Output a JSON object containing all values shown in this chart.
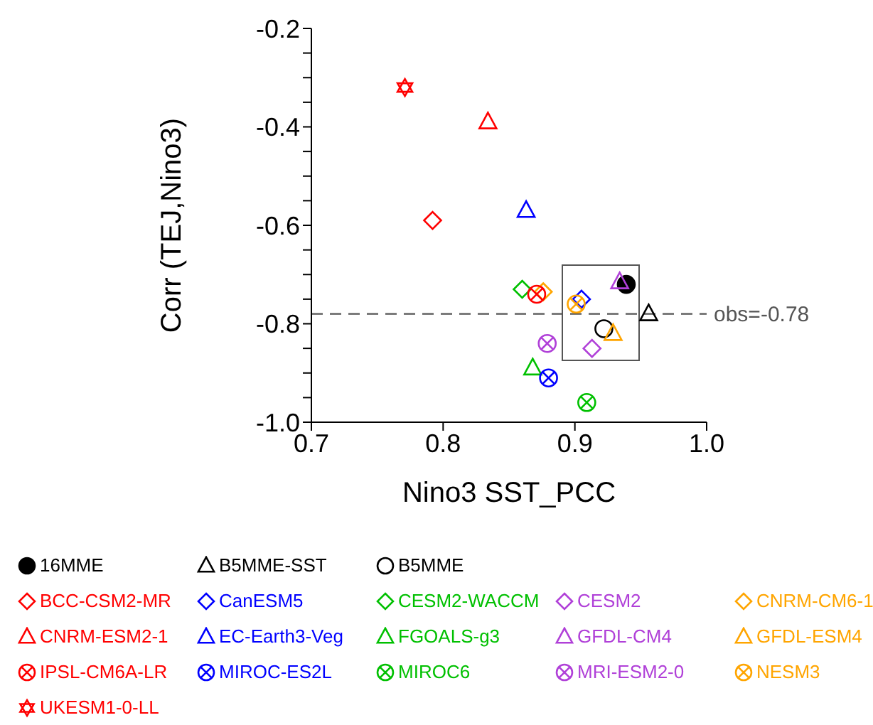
{
  "chart_data": {
    "type": "scatter",
    "xlabel": "Nino3 SST_PCC",
    "ylabel": "Corr (TEJ,Nino3)",
    "xlim": [
      0.7,
      1.0
    ],
    "xticks": [
      {
        "value": 0.7,
        "label": "0.7"
      },
      {
        "value": 0.8,
        "label": "0.8"
      },
      {
        "value": 0.9,
        "label": "0.9"
      },
      {
        "value": 1.0,
        "label": "1.0"
      }
    ],
    "ylim": [
      -1.0,
      -0.2
    ],
    "yticks": [
      {
        "value": -1.0,
        "label": "-1.0"
      },
      {
        "value": -0.95,
        "label": null
      },
      {
        "value": -0.9,
        "label": null
      },
      {
        "value": -0.85,
        "label": null
      },
      {
        "value": -0.8,
        "label": "-0.8"
      },
      {
        "value": -0.75,
        "label": null
      },
      {
        "value": -0.7,
        "label": null
      },
      {
        "value": -0.65,
        "label": null
      },
      {
        "value": -0.6,
        "label": "-0.6"
      },
      {
        "value": -0.55,
        "label": null
      },
      {
        "value": -0.5,
        "label": null
      },
      {
        "value": -0.45,
        "label": null
      },
      {
        "value": -0.4,
        "label": "-0.4"
      },
      {
        "value": -0.35,
        "label": null
      },
      {
        "value": -0.3,
        "label": null
      },
      {
        "value": -0.25,
        "label": null
      },
      {
        "value": -0.2,
        "label": "-0.2"
      }
    ],
    "grid": false,
    "legend": "bottom",
    "ref_lines": [
      {
        "axis": "y",
        "value": -0.78,
        "label": "obs=-0.78",
        "color": "#555555",
        "line_style": "dashed"
      }
    ],
    "series": [
      {
        "name": "16MME",
        "color": "#000000",
        "x": [
          0.939
        ],
        "values": [
          -0.72
        ]
      },
      {
        "name": "B5MME-SST",
        "color": "#000000",
        "marker": "triangle",
        "x": [
          0.956
        ],
        "values": [
          -0.78
        ]
      },
      {
        "name": "B5MME",
        "color": "#000000",
        "marker": "circle",
        "x": [
          0.922
        ],
        "values": [
          -0.81
        ]
      },
      {
        "name": "BCC-CSM2-MR",
        "color": "#ff0000",
        "marker": "diamond",
        "x": [
          0.792
        ],
        "values": [
          -0.59
        ]
      },
      {
        "name": "CanESM5",
        "color": "#0000ff",
        "marker": "diamond",
        "x": [
          0.905
        ],
        "values": [
          -0.75
        ]
      },
      {
        "name": "CESM2-WACCM",
        "color": "#00c000",
        "marker": "diamond",
        "x": [
          0.86
        ],
        "values": [
          -0.73
        ]
      },
      {
        "name": "CESM2",
        "color": "#b040d8",
        "marker": "diamond",
        "x": [
          0.913
        ],
        "values": [
          -0.85
        ]
      },
      {
        "name": "CNRM-CM6-1",
        "color": "#ffa500",
        "marker": "diamond",
        "x": [
          0.876
        ],
        "values": [
          -0.735
        ]
      },
      {
        "name": "CNRM-ESM2-1",
        "color": "#ff0000",
        "marker": "triangle",
        "x": [
          0.834
        ],
        "values": [
          -0.39
        ]
      },
      {
        "name": "EC-Earth3-Veg",
        "color": "#0000ff",
        "marker": "triangle",
        "x": [
          0.863
        ],
        "values": [
          -0.57
        ]
      },
      {
        "name": "FGOALS-g3",
        "color": "#00c000",
        "marker": "triangle",
        "x": [
          0.868
        ],
        "values": [
          -0.89
        ]
      },
      {
        "name": "GFDL-CM4",
        "color": "#b040d8",
        "marker": "triangle",
        "x": [
          0.934
        ],
        "values": [
          -0.715
        ]
      },
      {
        "name": "GFDL-ESM4",
        "color": "#ffa500",
        "marker": "triangle",
        "x": [
          0.929
        ],
        "values": [
          -0.82
        ]
      },
      {
        "name": "IPSL-CM6A-LR",
        "color": "#ff0000",
        "marker": "cross",
        "x": [
          0.871
        ],
        "values": [
          -0.74
        ]
      },
      {
        "name": "MIROC-ES2L",
        "color": "#0000ff",
        "marker": "cross",
        "x": [
          0.88
        ],
        "values": [
          -0.91
        ]
      },
      {
        "name": "MIROC6",
        "color": "#00c000",
        "marker": "cross",
        "x": [
          0.909
        ],
        "values": [
          -0.96
        ]
      },
      {
        "name": "MRI-ESM2-0",
        "color": "#b040d8",
        "marker": "cross",
        "x": [
          0.879
        ],
        "values": [
          -0.84
        ]
      },
      {
        "name": "NESM3",
        "color": "#ffa500",
        "marker": "cross",
        "x": [
          0.901
        ],
        "values": [
          -0.76
        ]
      },
      {
        "name": "UKESM1-0-LL",
        "color": "#ff0000",
        "marker": "star",
        "x": [
          0.771
        ],
        "values": [
          -0.32
        ]
      }
    ]
  }
}
